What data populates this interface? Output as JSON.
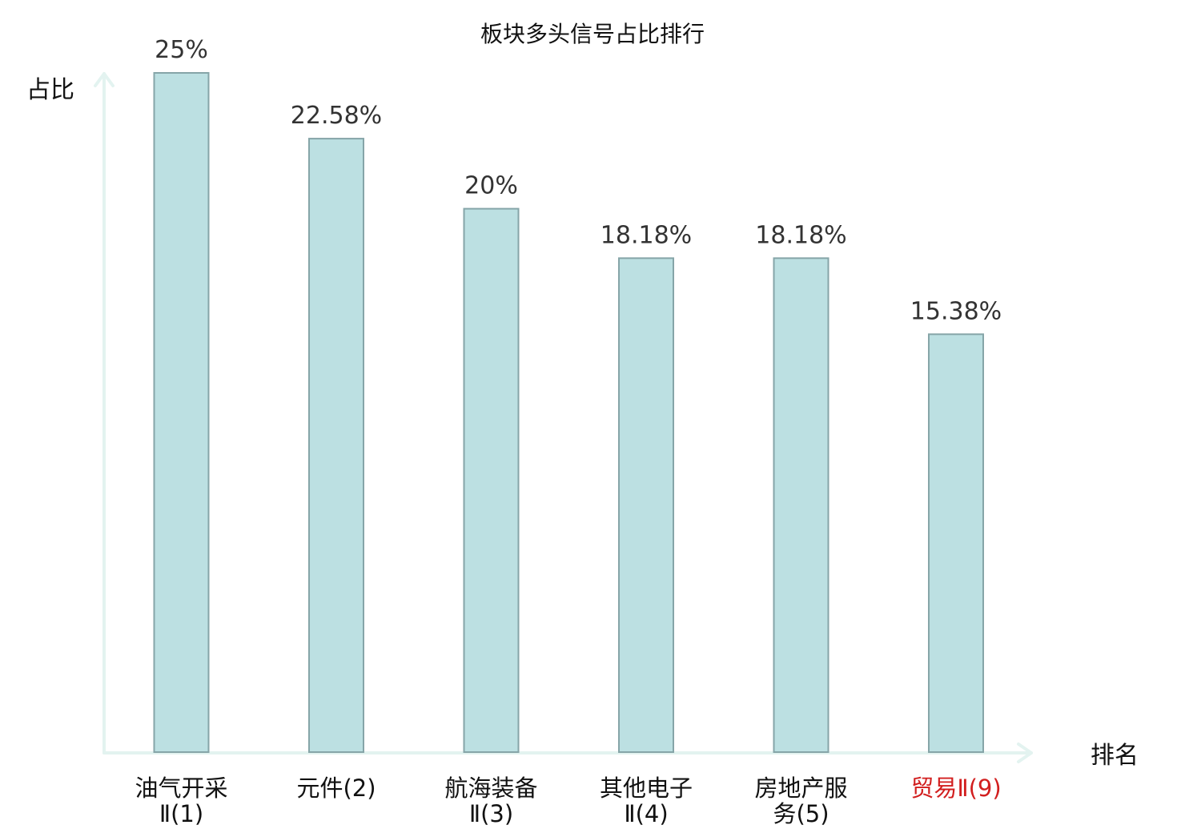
{
  "chart_data": {
    "type": "bar",
    "title": "板块多头信号占比排行",
    "ylabel": "占比",
    "xlabel": "排名",
    "categories": [
      [
        "油气开采",
        "Ⅱ(1)"
      ],
      [
        "元件(2)"
      ],
      [
        "航海装备",
        "Ⅱ(3)"
      ],
      [
        "其他电子",
        "Ⅱ(4)"
      ],
      [
        "房地产服",
        "务(5)"
      ],
      [
        "贸易Ⅱ(9)"
      ]
    ],
    "values": [
      25,
      22.58,
      20,
      18.18,
      18.18,
      15.38
    ],
    "value_labels": [
      "25%",
      "22.58%",
      "20%",
      "18.18%",
      "18.18%",
      "15.38%"
    ],
    "highlight_index": 5,
    "ylim": [
      0,
      25
    ],
    "grid": false,
    "colors": {
      "bar_fill": "#bce0e2",
      "bar_stroke": "#86a5a8",
      "axis": "#e3f3f0",
      "label": "#111111",
      "value_label": "#333333",
      "highlight": "#d21f1f"
    }
  }
}
